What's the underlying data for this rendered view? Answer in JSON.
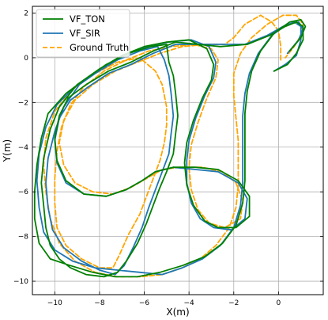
{
  "chart_data": {
    "type": "line",
    "title": "",
    "xlabel": "X(m)",
    "ylabel": "Y(m)",
    "xlim": [
      -11.0,
      2.0
    ],
    "ylim": [
      -10.6,
      2.3
    ],
    "xticks": [
      -10,
      -8,
      -6,
      -4,
      -2,
      0
    ],
    "yticks": [
      2,
      0,
      -2,
      -4,
      -6,
      -8,
      -10
    ],
    "grid": true,
    "legend_position": "top-left",
    "series": [
      {
        "name": "VF_TON",
        "color": "#008000",
        "dash": "solid",
        "points": [
          [
            -0.2,
            -0.6
          ],
          [
            0.4,
            -0.3
          ],
          [
            0.8,
            0.2
          ],
          [
            1.1,
            0.8
          ],
          [
            1.1,
            1.4
          ],
          [
            0.8,
            1.6
          ],
          [
            0.3,
            1.4
          ],
          [
            -0.4,
            1.0
          ],
          [
            -1.4,
            0.6
          ],
          [
            -2.6,
            0.5
          ],
          [
            -3.6,
            0.6
          ],
          [
            -4.6,
            0.7
          ],
          [
            -5.6,
            0.3
          ],
          [
            -6.6,
            -0.2
          ],
          [
            -7.6,
            -0.6
          ],
          [
            -8.6,
            -1.2
          ],
          [
            -9.4,
            -1.8
          ],
          [
            -9.8,
            -2.6
          ],
          [
            -10.0,
            -3.6
          ],
          [
            -9.9,
            -4.6
          ],
          [
            -9.5,
            -5.5
          ],
          [
            -8.7,
            -6.1
          ],
          [
            -7.7,
            -6.2
          ],
          [
            -6.8,
            -5.9
          ],
          [
            -6.1,
            -5.5
          ],
          [
            -5.5,
            -5.1
          ],
          [
            -4.7,
            -4.9
          ],
          [
            -3.7,
            -4.9
          ],
          [
            -2.7,
            -5.0
          ],
          [
            -1.8,
            -5.5
          ],
          [
            -1.3,
            -6.2
          ],
          [
            -1.3,
            -7.1
          ],
          [
            -1.9,
            -7.6
          ],
          [
            -2.7,
            -7.6
          ],
          [
            -3.3,
            -7.3
          ],
          [
            -3.8,
            -6.6
          ],
          [
            -4.1,
            -5.7
          ],
          [
            -4.2,
            -4.7
          ],
          [
            -4.1,
            -3.8
          ],
          [
            -3.8,
            -2.8
          ],
          [
            -3.4,
            -1.8
          ],
          [
            -3.0,
            -1.0
          ],
          [
            -2.9,
            -0.3
          ],
          [
            -3.2,
            0.4
          ],
          [
            -4.0,
            0.8
          ],
          [
            -5.0,
            0.7
          ],
          [
            -6.0,
            0.5
          ],
          [
            -7.0,
            0.1
          ],
          [
            -8.0,
            -0.5
          ],
          [
            -9.0,
            -1.2
          ],
          [
            -9.8,
            -2.2
          ],
          [
            -10.2,
            -3.2
          ],
          [
            -10.5,
            -4.5
          ],
          [
            -10.6,
            -5.6
          ],
          [
            -10.5,
            -6.6
          ],
          [
            -10.4,
            -7.6
          ],
          [
            -10.2,
            -8.4
          ],
          [
            -9.8,
            -9.0
          ],
          [
            -9.3,
            -9.4
          ],
          [
            -8.6,
            -9.7
          ],
          [
            -7.8,
            -9.8
          ],
          [
            -7.2,
            -9.6
          ],
          [
            -6.8,
            -9.1
          ],
          [
            -6.3,
            -8.3
          ],
          [
            -5.9,
            -7.4
          ],
          [
            -5.6,
            -6.6
          ],
          [
            -5.3,
            -5.8
          ],
          [
            -5.0,
            -5.1
          ],
          [
            -4.7,
            -4.3
          ],
          [
            -4.6,
            -3.4
          ],
          [
            -4.5,
            -2.6
          ],
          [
            -4.6,
            -1.6
          ],
          [
            -4.7,
            -0.8
          ],
          [
            -4.9,
            -0.2
          ],
          [
            -5.0,
            0.6
          ],
          [
            -5.7,
            0.5
          ],
          [
            -6.7,
            0.2
          ],
          [
            -7.7,
            -0.3
          ],
          [
            -8.7,
            -1.0
          ],
          [
            -9.5,
            -1.6
          ],
          [
            -10.3,
            -2.5
          ],
          [
            -10.6,
            -3.6
          ],
          [
            -10.8,
            -4.8
          ],
          [
            -10.9,
            -6.0
          ],
          [
            -10.9,
            -7.2
          ],
          [
            -10.7,
            -8.3
          ],
          [
            -10.2,
            -9.0
          ],
          [
            -9.3,
            -9.3
          ],
          [
            -8.3,
            -9.6
          ],
          [
            -7.3,
            -9.8
          ],
          [
            -6.3,
            -9.8
          ],
          [
            -5.3,
            -9.6
          ],
          [
            -4.3,
            -9.3
          ],
          [
            -3.3,
            -8.9
          ],
          [
            -2.5,
            -8.3
          ],
          [
            -1.9,
            -7.5
          ],
          [
            -1.6,
            -6.5
          ],
          [
            -1.5,
            -5.5
          ],
          [
            -1.5,
            -4.5
          ],
          [
            -1.5,
            -3.5
          ],
          [
            -1.5,
            -2.5
          ],
          [
            -1.4,
            -1.5
          ],
          [
            -1.2,
            -0.6
          ],
          [
            -0.8,
            0.3
          ],
          [
            -0.2,
            1.1
          ],
          [
            0.5,
            1.6
          ],
          [
            1.0,
            1.7
          ],
          [
            1.2,
            1.4
          ],
          [
            1.0,
            0.9
          ],
          [
            0.5,
            0.3
          ]
        ]
      },
      {
        "name": "VF_SIR",
        "color": "#1f77b4",
        "dash": "solid",
        "points": [
          [
            -0.2,
            -0.6
          ],
          [
            0.3,
            -0.3
          ],
          [
            0.8,
            0.1
          ],
          [
            1.0,
            0.8
          ],
          [
            1.0,
            1.4
          ],
          [
            0.7,
            1.6
          ],
          [
            0.2,
            1.4
          ],
          [
            -0.5,
            1.0
          ],
          [
            -1.5,
            0.6
          ],
          [
            -2.6,
            0.6
          ],
          [
            -3.6,
            0.6
          ],
          [
            -4.6,
            0.6
          ],
          [
            -5.6,
            0.2
          ],
          [
            -6.6,
            -0.3
          ],
          [
            -7.6,
            -0.7
          ],
          [
            -8.5,
            -1.3
          ],
          [
            -9.3,
            -1.9
          ],
          [
            -9.8,
            -2.7
          ],
          [
            -10.0,
            -3.7
          ],
          [
            -9.9,
            -4.7
          ],
          [
            -9.5,
            -5.6
          ],
          [
            -8.7,
            -6.1
          ],
          [
            -7.7,
            -6.2
          ],
          [
            -6.8,
            -5.9
          ],
          [
            -6.1,
            -5.5
          ],
          [
            -5.5,
            -5.1
          ],
          [
            -4.7,
            -4.9
          ],
          [
            -3.7,
            -5.0
          ],
          [
            -2.7,
            -5.1
          ],
          [
            -1.8,
            -5.6
          ],
          [
            -1.4,
            -6.3
          ],
          [
            -1.5,
            -7.2
          ],
          [
            -2.1,
            -7.7
          ],
          [
            -2.9,
            -7.6
          ],
          [
            -3.5,
            -7.2
          ],
          [
            -3.9,
            -6.5
          ],
          [
            -4.1,
            -5.6
          ],
          [
            -4.1,
            -4.6
          ],
          [
            -4.0,
            -3.7
          ],
          [
            -3.7,
            -2.7
          ],
          [
            -3.3,
            -1.7
          ],
          [
            -2.9,
            -0.9
          ],
          [
            -2.8,
            -0.2
          ],
          [
            -3.1,
            0.5
          ],
          [
            -3.9,
            0.8
          ],
          [
            -4.9,
            0.7
          ],
          [
            -5.9,
            0.5
          ],
          [
            -6.9,
            0.1
          ],
          [
            -7.9,
            -0.5
          ],
          [
            -8.9,
            -1.2
          ],
          [
            -9.6,
            -2.2
          ],
          [
            -10.0,
            -3.3
          ],
          [
            -10.3,
            -4.5
          ],
          [
            -10.4,
            -5.6
          ],
          [
            -10.3,
            -6.7
          ],
          [
            -10.1,
            -7.7
          ],
          [
            -9.6,
            -8.5
          ],
          [
            -8.8,
            -9.1
          ],
          [
            -8.0,
            -9.5
          ],
          [
            -7.3,
            -9.7
          ],
          [
            -6.9,
            -9.3
          ],
          [
            -6.5,
            -8.5
          ],
          [
            -6.1,
            -7.6
          ],
          [
            -5.8,
            -6.7
          ],
          [
            -5.5,
            -5.9
          ],
          [
            -5.2,
            -5.1
          ],
          [
            -4.9,
            -4.3
          ],
          [
            -4.8,
            -3.4
          ],
          [
            -4.7,
            -2.6
          ],
          [
            -4.8,
            -1.6
          ],
          [
            -4.9,
            -0.8
          ],
          [
            -5.1,
            -0.1
          ],
          [
            -5.4,
            0.5
          ],
          [
            -6.2,
            0.3
          ],
          [
            -7.2,
            -0.1
          ],
          [
            -8.2,
            -0.7
          ],
          [
            -9.1,
            -1.3
          ],
          [
            -9.9,
            -2.1
          ],
          [
            -10.4,
            -3.1
          ],
          [
            -10.7,
            -4.3
          ],
          [
            -10.8,
            -5.5
          ],
          [
            -10.7,
            -6.7
          ],
          [
            -10.5,
            -7.8
          ],
          [
            -10.0,
            -8.6
          ],
          [
            -9.2,
            -9.1
          ],
          [
            -8.2,
            -9.4
          ],
          [
            -7.2,
            -9.5
          ],
          [
            -6.2,
            -9.6
          ],
          [
            -5.2,
            -9.7
          ],
          [
            -4.3,
            -9.4
          ],
          [
            -3.4,
            -9.0
          ],
          [
            -2.6,
            -8.4
          ],
          [
            -2.0,
            -7.6
          ],
          [
            -1.7,
            -6.6
          ],
          [
            -1.6,
            -5.6
          ],
          [
            -1.6,
            -4.6
          ],
          [
            -1.6,
            -3.6
          ],
          [
            -1.6,
            -2.6
          ],
          [
            -1.5,
            -1.6
          ],
          [
            -1.3,
            -0.7
          ],
          [
            -0.9,
            0.2
          ],
          [
            -0.3,
            1.0
          ],
          [
            0.4,
            1.5
          ],
          [
            0.9,
            1.6
          ],
          [
            1.1,
            1.3
          ],
          [
            0.9,
            0.8
          ],
          [
            0.4,
            0.2
          ]
        ]
      },
      {
        "name": "Ground Truth",
        "color": "#ffa500",
        "dash": "dashed",
        "points": [
          [
            0.1,
            -0.1
          ],
          [
            0.1,
            0.5
          ],
          [
            0.0,
            1.2
          ],
          [
            -0.3,
            1.6
          ],
          [
            -0.8,
            1.9
          ],
          [
            -1.5,
            1.5
          ],
          [
            -2.0,
            0.9
          ],
          [
            -2.4,
            0.6
          ],
          [
            -3.2,
            0.6
          ],
          [
            -4.3,
            0.5
          ],
          [
            -5.3,
            0.2
          ],
          [
            -6.3,
            -0.2
          ],
          [
            -7.3,
            -0.6
          ],
          [
            -8.3,
            -1.2
          ],
          [
            -9.1,
            -1.9
          ],
          [
            -9.6,
            -2.8
          ],
          [
            -9.8,
            -3.8
          ],
          [
            -9.6,
            -4.8
          ],
          [
            -9.1,
            -5.6
          ],
          [
            -8.3,
            -6.0
          ],
          [
            -7.4,
            -6.1
          ],
          [
            -6.6,
            -5.8
          ],
          [
            -5.9,
            -5.4
          ],
          [
            -5.2,
            -5.0
          ],
          [
            -4.4,
            -4.9
          ],
          [
            -3.4,
            -4.9
          ],
          [
            -2.5,
            -5.1
          ],
          [
            -1.9,
            -5.6
          ],
          [
            -1.6,
            -6.4
          ],
          [
            -1.7,
            -7.2
          ],
          [
            -2.4,
            -7.6
          ],
          [
            -3.1,
            -7.4
          ],
          [
            -3.6,
            -6.8
          ],
          [
            -3.9,
            -5.9
          ],
          [
            -4.0,
            -4.9
          ],
          [
            -3.9,
            -3.9
          ],
          [
            -3.6,
            -2.9
          ],
          [
            -3.2,
            -1.8
          ],
          [
            -2.8,
            -0.9
          ],
          [
            -2.7,
            -0.1
          ],
          [
            -3.0,
            0.4
          ],
          [
            -3.8,
            0.6
          ],
          [
            -4.8,
            0.5
          ],
          [
            -5.8,
            0.3
          ],
          [
            -6.8,
            -0.1
          ],
          [
            -7.8,
            -0.6
          ],
          [
            -8.7,
            -1.3
          ],
          [
            -9.3,
            -2.1
          ],
          [
            -9.7,
            -3.1
          ],
          [
            -9.9,
            -4.2
          ],
          [
            -10.0,
            -5.4
          ],
          [
            -10.0,
            -6.5
          ],
          [
            -9.9,
            -7.6
          ],
          [
            -9.5,
            -8.4
          ],
          [
            -8.8,
            -9.0
          ],
          [
            -8.0,
            -9.4
          ],
          [
            -7.4,
            -9.4
          ],
          [
            -7.1,
            -8.8
          ],
          [
            -6.7,
            -7.9
          ],
          [
            -6.2,
            -7.0
          ],
          [
            -5.9,
            -6.2
          ],
          [
            -5.6,
            -5.4
          ],
          [
            -5.3,
            -4.6
          ],
          [
            -5.1,
            -3.8
          ],
          [
            -5.0,
            -3.0
          ],
          [
            -5.0,
            -2.2
          ],
          [
            -5.2,
            -1.2
          ],
          [
            -5.5,
            -0.6
          ],
          [
            -6.2,
            0.0
          ],
          [
            -7.2,
            -0.2
          ],
          [
            -8.2,
            -0.7
          ],
          [
            -9.2,
            -1.4
          ],
          [
            -10.0,
            -2.4
          ],
          [
            -10.4,
            -3.6
          ],
          [
            -10.5,
            -4.8
          ],
          [
            -10.4,
            -6.0
          ],
          [
            -10.2,
            -7.2
          ],
          [
            -9.8,
            -8.3
          ],
          [
            -9.1,
            -9.1
          ],
          [
            -8.2,
            -9.6
          ],
          [
            -7.2,
            -9.8
          ],
          [
            -6.2,
            -9.8
          ],
          [
            -5.2,
            -9.7
          ],
          [
            -4.3,
            -9.4
          ],
          [
            -3.5,
            -9.0
          ],
          [
            -2.8,
            -8.4
          ],
          [
            -2.2,
            -7.6
          ],
          [
            -1.9,
            -6.7
          ],
          [
            -1.8,
            -5.7
          ],
          [
            -1.8,
            -4.7
          ],
          [
            -1.8,
            -3.7
          ],
          [
            -1.9,
            -2.7
          ],
          [
            -2.0,
            -1.7
          ],
          [
            -2.0,
            -0.7
          ],
          [
            -1.7,
            0.2
          ],
          [
            -1.2,
            0.9
          ],
          [
            -0.5,
            1.5
          ],
          [
            0.2,
            1.9
          ],
          [
            0.8,
            1.9
          ],
          [
            1.1,
            1.5
          ],
          [
            1.0,
            1.0
          ],
          [
            0.7,
            0.5
          ],
          [
            0.3,
            0.0
          ]
        ]
      }
    ]
  }
}
